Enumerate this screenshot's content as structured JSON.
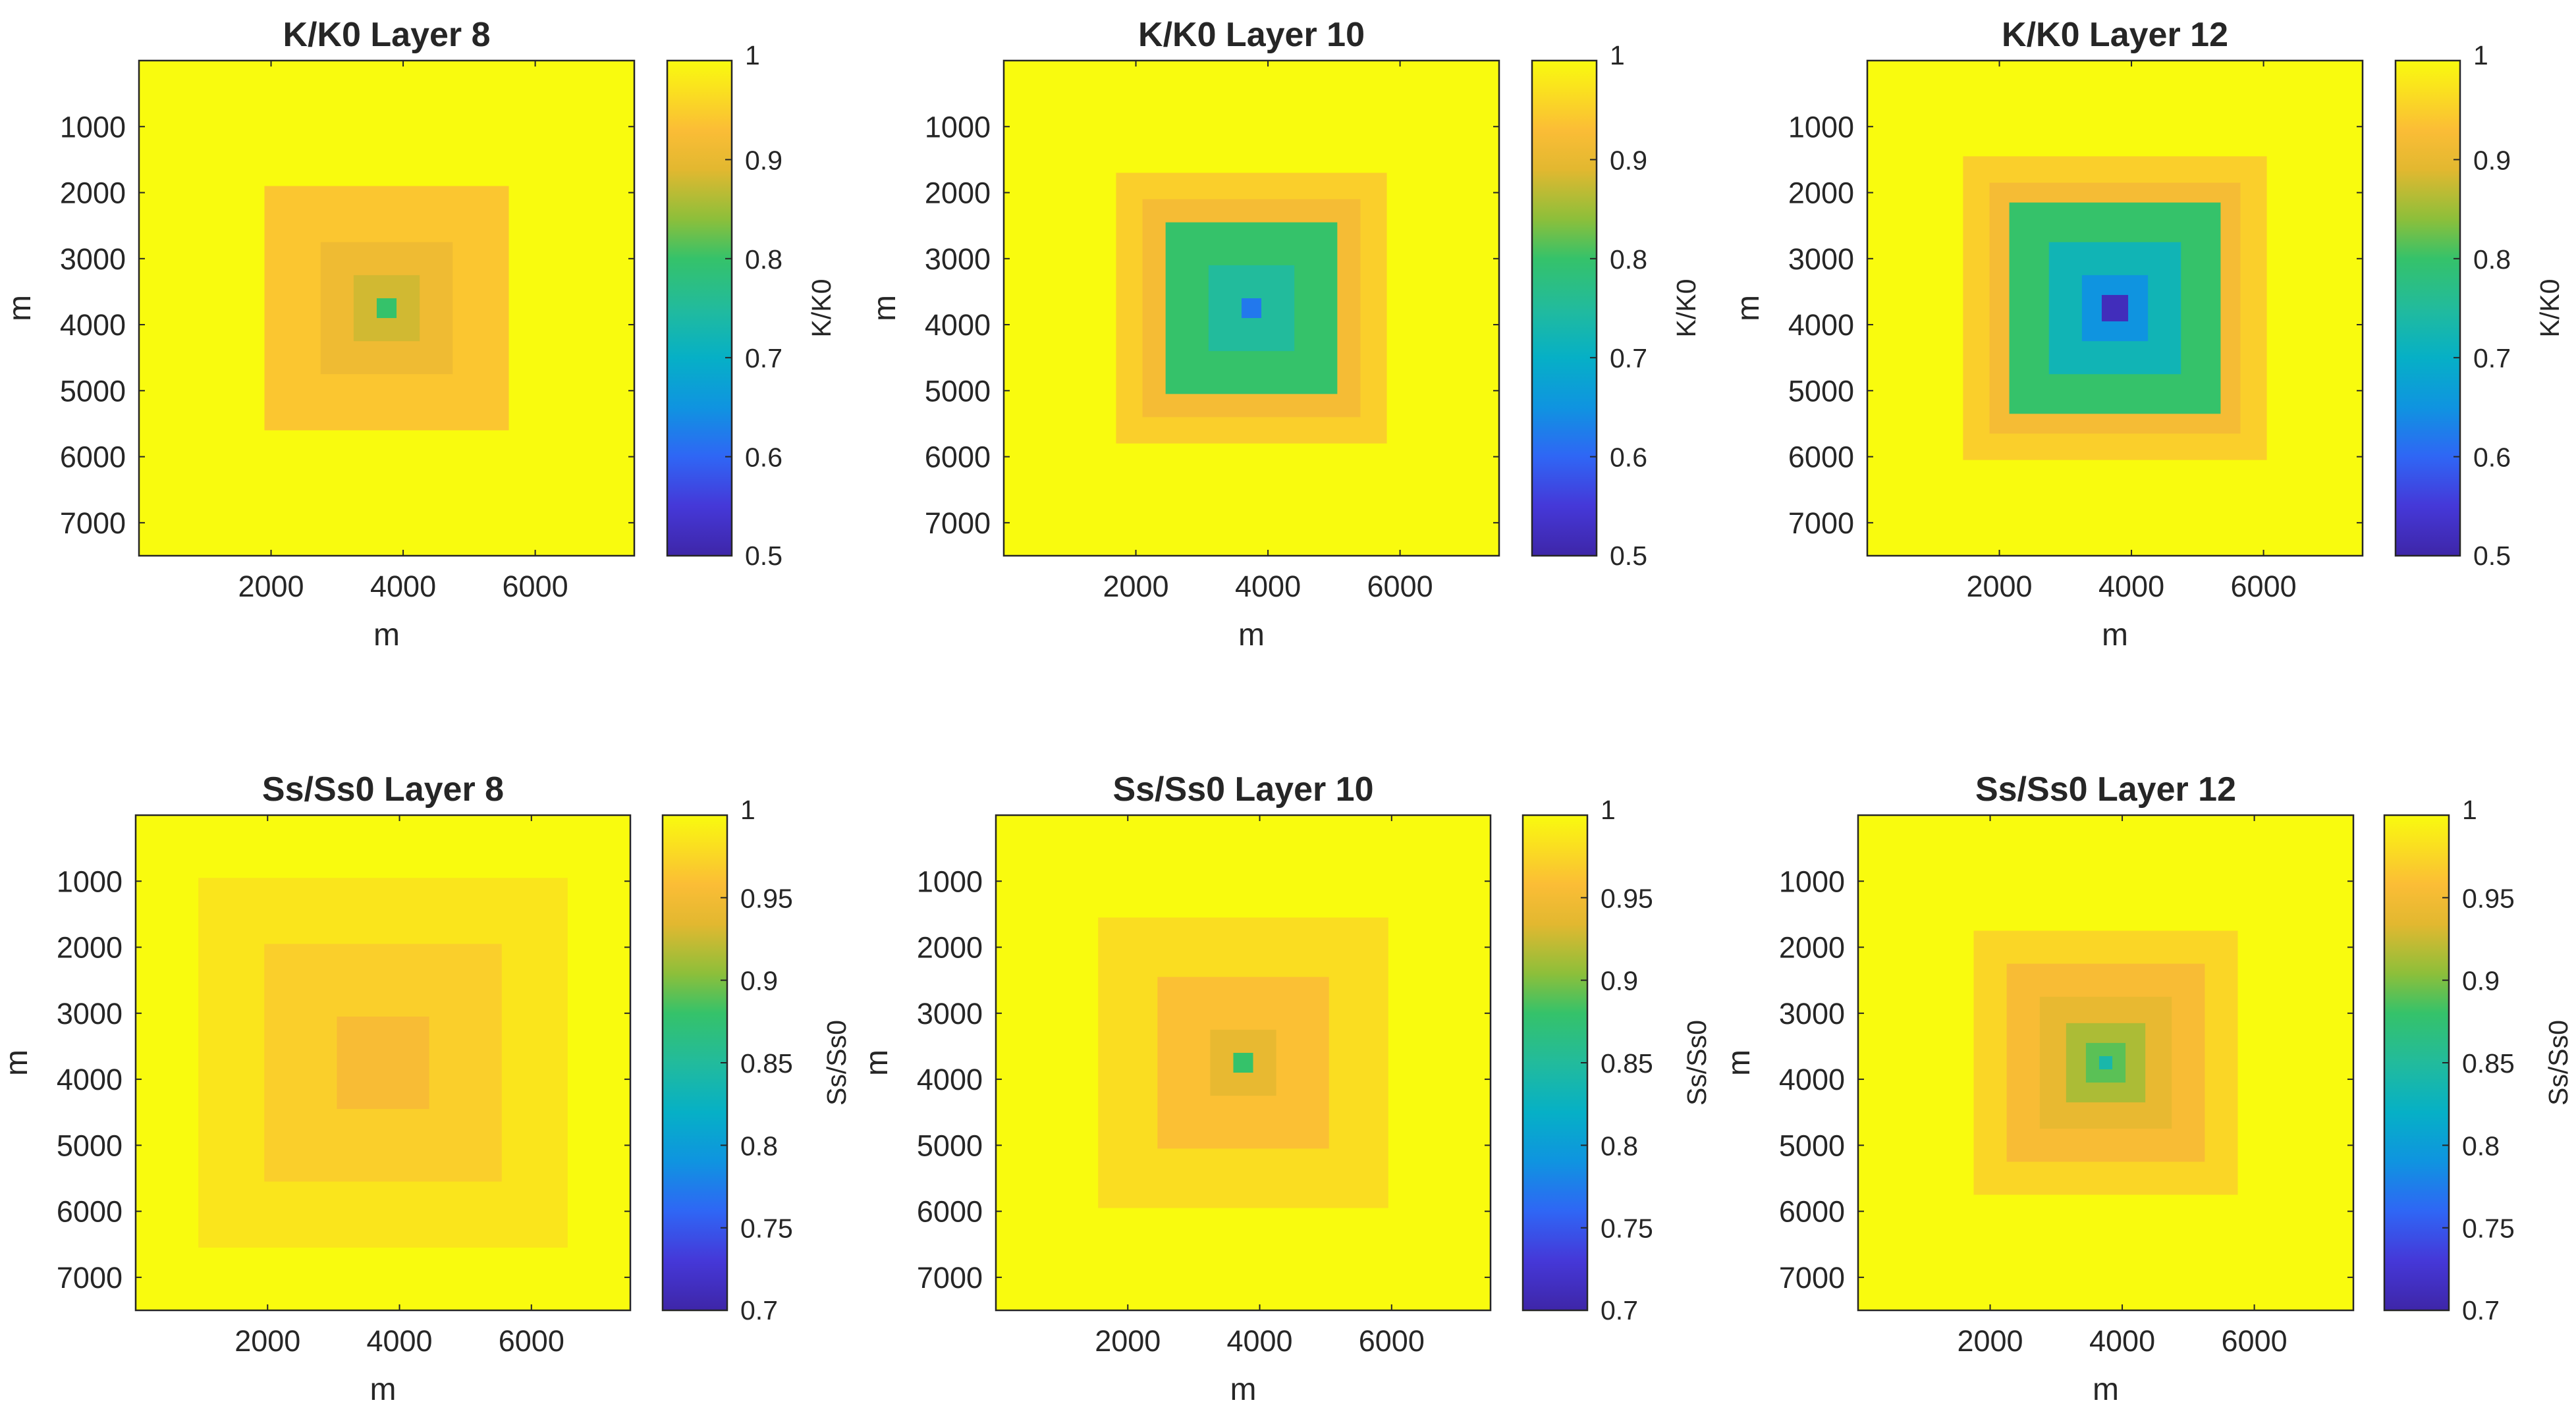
{
  "chart_data": [
    {
      "type": "heatmap",
      "title": "K/K0 Layer 8",
      "xlabel": "m",
      "ylabel": "m",
      "xlim": [
        0,
        7500
      ],
      "ylim": [
        0,
        7500
      ],
      "x_ticks": [
        "2000",
        "4000",
        "6000"
      ],
      "y_ticks": [
        "1000",
        "2000",
        "3000",
        "4000",
        "5000",
        "6000",
        "7000"
      ],
      "colorbar_label": "K/K0",
      "clim": [
        0.5,
        1
      ],
      "colorbar_ticks": [
        "0.5",
        "0.6",
        "0.7",
        "0.8",
        "0.9",
        "1"
      ],
      "center": [
        3750,
        3750
      ],
      "zone_halfwidths": [
        1850,
        1000,
        500,
        150
      ],
      "zone_values": [
        0.94,
        0.91,
        0.88,
        0.8
      ]
    },
    {
      "type": "heatmap",
      "title": "K/K0 Layer 10",
      "xlabel": "m",
      "ylabel": "m",
      "xlim": [
        0,
        7500
      ],
      "ylim": [
        0,
        7500
      ],
      "x_ticks": [
        "2000",
        "4000",
        "6000"
      ],
      "y_ticks": [
        "1000",
        "2000",
        "3000",
        "4000",
        "5000",
        "6000",
        "7000"
      ],
      "colorbar_label": "K/K0",
      "clim": [
        0.5,
        1
      ],
      "colorbar_ticks": [
        "0.5",
        "0.6",
        "0.7",
        "0.8",
        "0.9",
        "1"
      ],
      "center": [
        3750,
        3750
      ],
      "zone_halfwidths": [
        2050,
        1650,
        1300,
        650,
        150
      ],
      "zone_values": [
        0.95,
        0.92,
        0.8,
        0.75,
        0.62
      ]
    },
    {
      "type": "heatmap",
      "title": "K/K0 Layer 12",
      "xlabel": "m",
      "ylabel": "m",
      "xlim": [
        0,
        7500
      ],
      "ylim": [
        0,
        7500
      ],
      "x_ticks": [
        "2000",
        "4000",
        "6000"
      ],
      "y_ticks": [
        "1000",
        "2000",
        "3000",
        "4000",
        "5000",
        "6000",
        "7000"
      ],
      "colorbar_label": "K/K0",
      "clim": [
        0.5,
        1
      ],
      "colorbar_ticks": [
        "0.5",
        "0.6",
        "0.7",
        "0.8",
        "0.9",
        "1"
      ],
      "center": [
        3750,
        3750
      ],
      "zone_halfwidths": [
        2300,
        1900,
        1600,
        1000,
        500,
        200
      ],
      "zone_values": [
        0.95,
        0.92,
        0.8,
        0.72,
        0.65,
        0.52
      ]
    },
    {
      "type": "heatmap",
      "title": "Ss/Ss0 Layer 8",
      "xlabel": "m",
      "ylabel": "m",
      "xlim": [
        0,
        7500
      ],
      "ylim": [
        0,
        7500
      ],
      "x_ticks": [
        "2000",
        "4000",
        "6000"
      ],
      "y_ticks": [
        "1000",
        "2000",
        "3000",
        "4000",
        "5000",
        "6000",
        "7000"
      ],
      "colorbar_label": "Ss/Ss0",
      "clim": [
        0.7,
        1
      ],
      "colorbar_ticks": [
        "0.7",
        "0.75",
        "0.8",
        "0.85",
        "0.9",
        "0.95",
        "1"
      ],
      "center": [
        3750,
        3750
      ],
      "zone_halfwidths": [
        2800,
        1800,
        700
      ],
      "zone_values": [
        0.985,
        0.97,
        0.955
      ]
    },
    {
      "type": "heatmap",
      "title": "Ss/Ss0 Layer 10",
      "xlabel": "m",
      "ylabel": "m",
      "xlim": [
        0,
        7500
      ],
      "ylim": [
        0,
        7500
      ],
      "x_ticks": [
        "2000",
        "4000",
        "6000"
      ],
      "y_ticks": [
        "1000",
        "2000",
        "3000",
        "4000",
        "5000",
        "6000",
        "7000"
      ],
      "colorbar_label": "Ss/Ss0",
      "clim": [
        0.7,
        1
      ],
      "colorbar_ticks": [
        "0.7",
        "0.75",
        "0.8",
        "0.85",
        "0.9",
        "0.95",
        "1"
      ],
      "center": [
        3750,
        3750
      ],
      "zone_halfwidths": [
        2200,
        1300,
        500,
        150
      ],
      "zone_values": [
        0.98,
        0.96,
        0.94,
        0.88
      ]
    },
    {
      "type": "heatmap",
      "title": "Ss/Ss0 Layer 12",
      "xlabel": "m",
      "ylabel": "m",
      "xlim": [
        0,
        7500
      ],
      "ylim": [
        0,
        7500
      ],
      "x_ticks": [
        "2000",
        "4000",
        "6000"
      ],
      "y_ticks": [
        "1000",
        "2000",
        "3000",
        "4000",
        "5000",
        "6000",
        "7000"
      ],
      "colorbar_label": "Ss/Ss0",
      "clim": [
        0.7,
        1
      ],
      "colorbar_ticks": [
        "0.7",
        "0.75",
        "0.8",
        "0.85",
        "0.9",
        "0.95",
        "1"
      ],
      "center": [
        3750,
        3750
      ],
      "zone_halfwidths": [
        2000,
        1500,
        1000,
        600,
        300,
        100
      ],
      "zone_values": [
        0.975,
        0.955,
        0.94,
        0.915,
        0.89,
        0.84
      ]
    }
  ]
}
